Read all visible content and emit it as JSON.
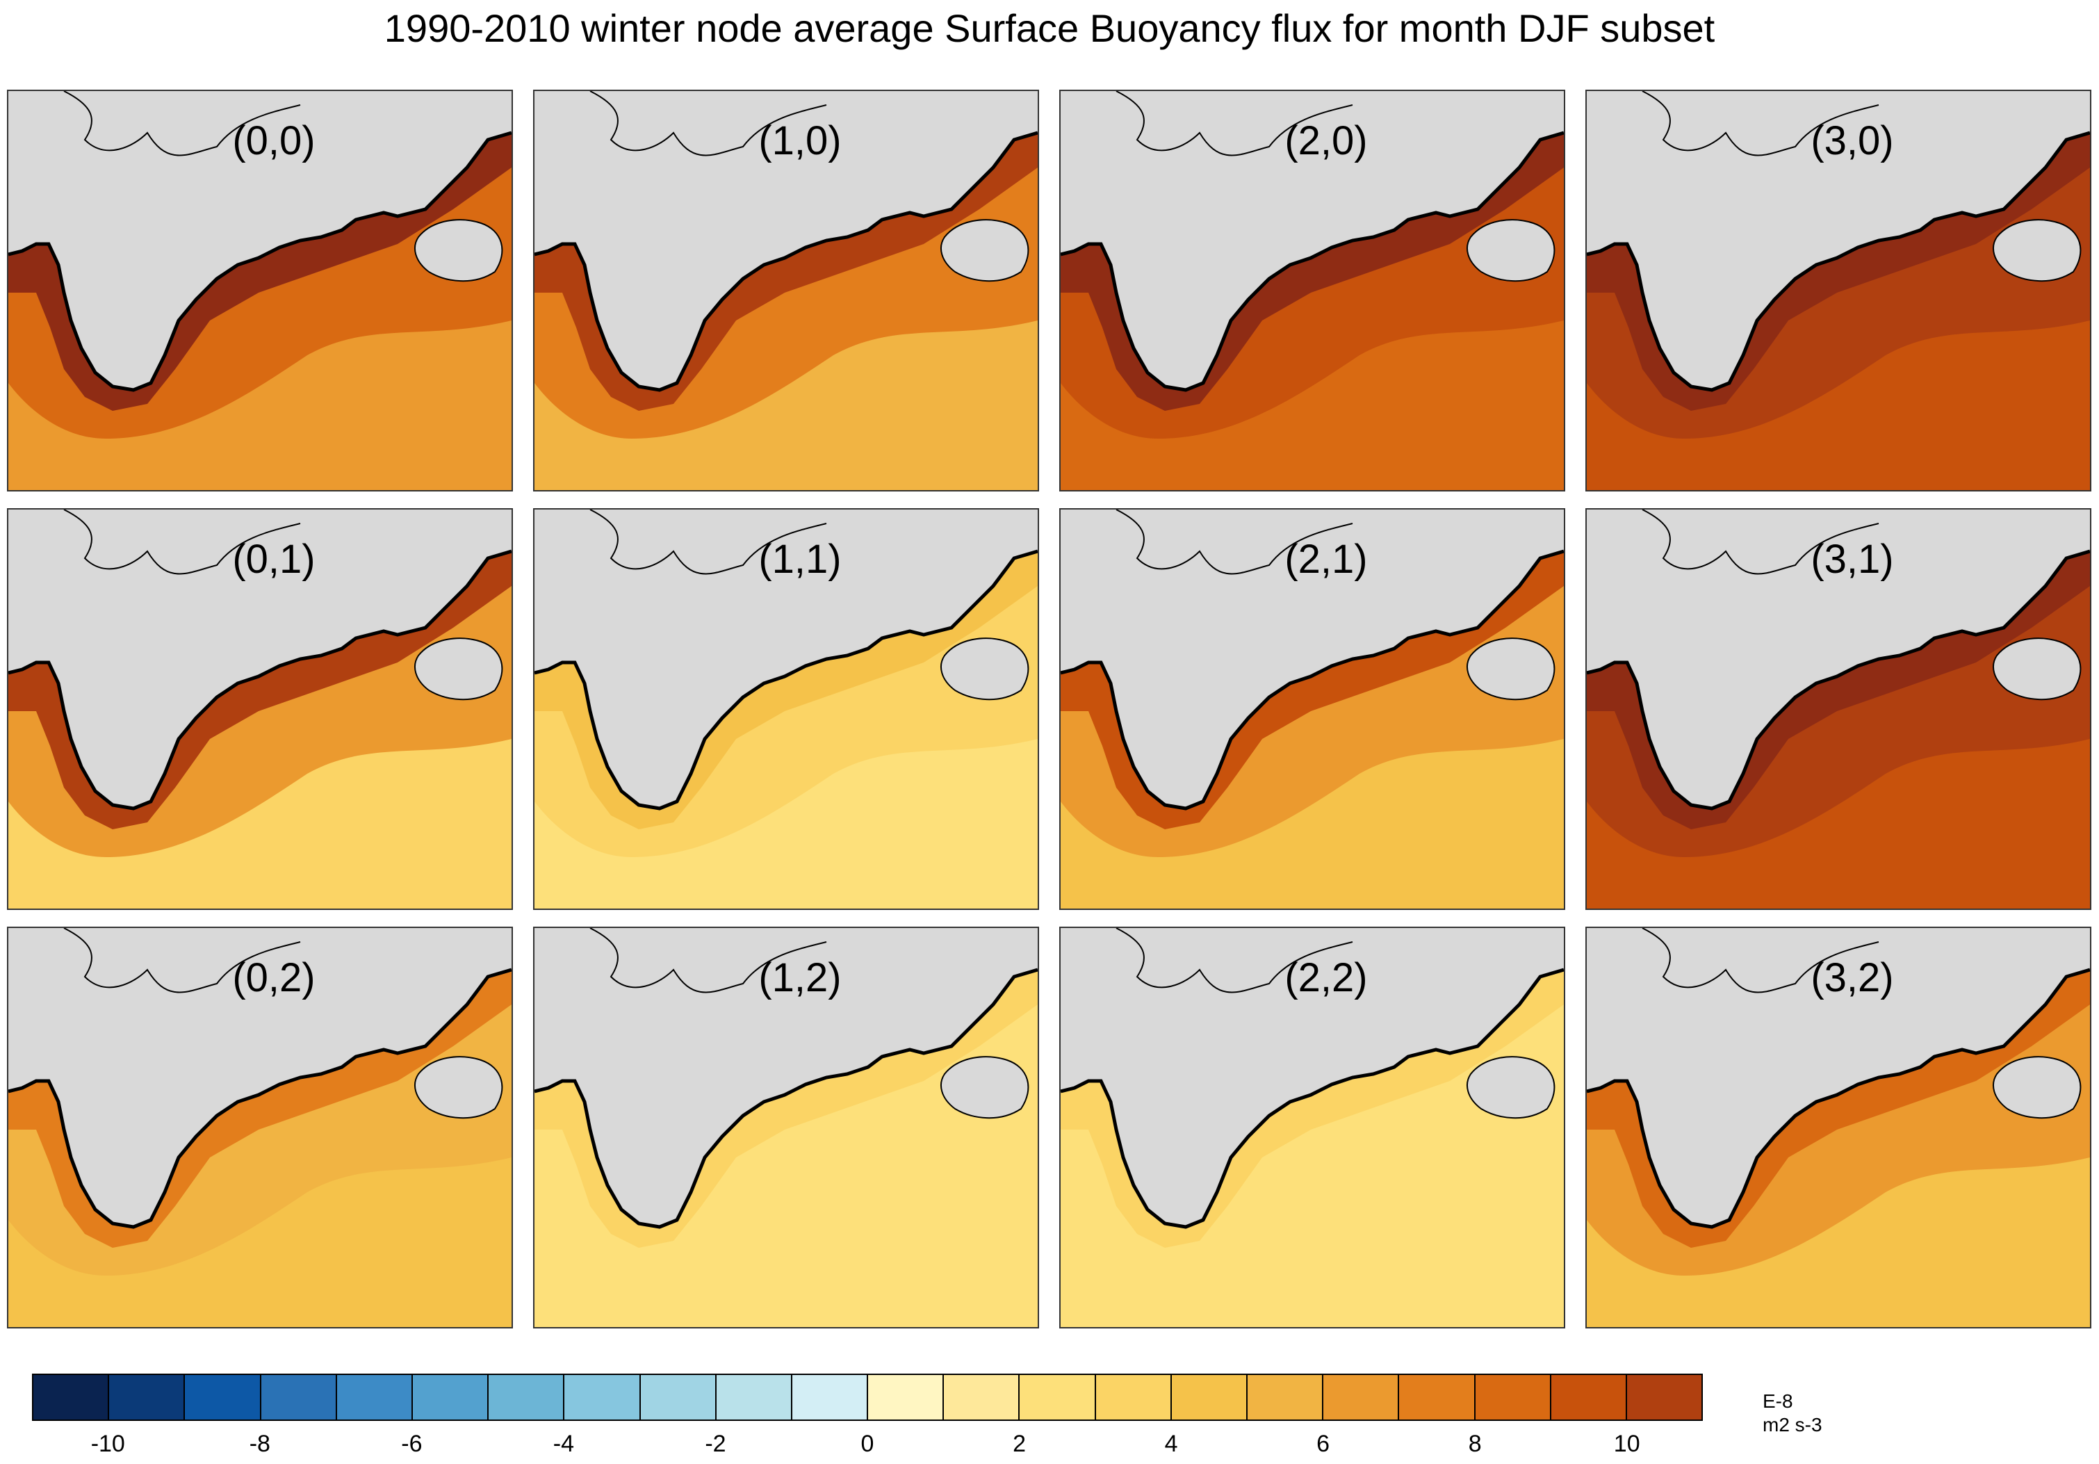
{
  "title": "1990-2010 winter node average Surface Buoyancy flux for month DJF subset",
  "colors": {
    "land": "#d9d9d9",
    "coast": "#000000"
  },
  "chart_data": {
    "type": "heatmap",
    "title": "1990-2010 winter node average Surface Buoyancy flux for month DJF subset",
    "grid": {
      "columns": 4,
      "rows": 3
    },
    "panels": [
      {
        "label": "(0,0)",
        "col": 0,
        "row": 0,
        "mean_level": 6.5,
        "shelf_level": 11
      },
      {
        "label": "(1,0)",
        "col": 1,
        "row": 0,
        "mean_level": 5.5,
        "shelf_level": 10
      },
      {
        "label": "(2,0)",
        "col": 2,
        "row": 0,
        "mean_level": 8,
        "shelf_level": 11
      },
      {
        "label": "(3,0)",
        "col": 3,
        "row": 0,
        "mean_level": 9.5,
        "shelf_level": 11
      },
      {
        "label": "(0,1)",
        "col": 0,
        "row": 1,
        "mean_level": 3,
        "shelf_level": 10
      },
      {
        "label": "(1,1)",
        "col": 1,
        "row": 1,
        "mean_level": 2.5,
        "shelf_level": 4
      },
      {
        "label": "(2,1)",
        "col": 2,
        "row": 1,
        "mean_level": 4.5,
        "shelf_level": 9
      },
      {
        "label": "(3,1)",
        "col": 3,
        "row": 1,
        "mean_level": 9,
        "shelf_level": 11
      },
      {
        "label": "(0,2)",
        "col": 0,
        "row": 2,
        "mean_level": 4,
        "shelf_level": 7
      },
      {
        "label": "(1,2)",
        "col": 1,
        "row": 2,
        "mean_level": 2,
        "shelf_level": 3
      },
      {
        "label": "(2,2)",
        "col": 2,
        "row": 2,
        "mean_level": 2,
        "shelf_level": 3
      },
      {
        "label": "(3,2)",
        "col": 3,
        "row": 2,
        "mean_level": 4.5,
        "shelf_level": 8
      }
    ],
    "colorbar": {
      "levels": [
        -11,
        -10,
        -9,
        -8,
        -7,
        -6,
        -5,
        -4,
        -3,
        -2,
        -1,
        0,
        1,
        2,
        3,
        4,
        5,
        6,
        7,
        8,
        9,
        10,
        11
      ],
      "colors": [
        "#0a2350",
        "#0b3a78",
        "#0d58a6",
        "#2a72b5",
        "#3d8bc6",
        "#53a1cf",
        "#6cb5d6",
        "#86c6df",
        "#a0d4e4",
        "#b9e1ea",
        "#d3eef5",
        "#fff6c2",
        "#fee89a",
        "#fde07a",
        "#fbd465",
        "#f5c24a",
        "#f1b443",
        "#eb9a2f",
        "#e37e1c",
        "#d96a12",
        "#c8520c",
        "#b04010",
        "#8f2c14"
      ],
      "tick_labels": [
        "-10",
        "-8",
        "-6",
        "-4",
        "-2",
        "0",
        "2",
        "4",
        "6",
        "8",
        "10"
      ],
      "tick_values": [
        -10,
        -8,
        -6,
        -4,
        -2,
        0,
        2,
        4,
        6,
        8,
        10
      ],
      "units_exponent": "E-8",
      "units": "m2 s-3"
    }
  }
}
